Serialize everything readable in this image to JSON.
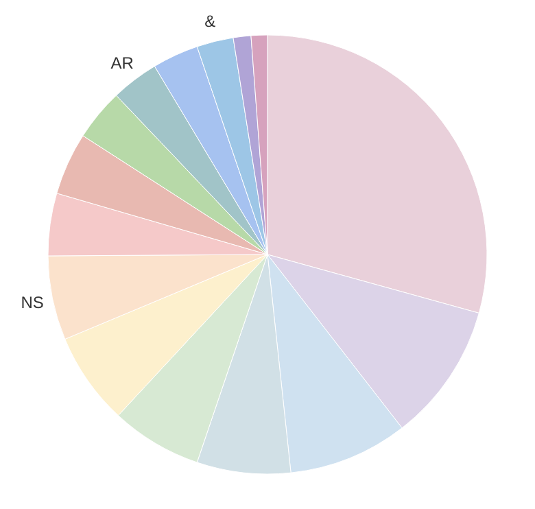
{
  "chart_data": {
    "type": "pie",
    "categories": [
      null,
      null,
      null,
      null,
      null,
      null,
      "NS",
      null,
      null,
      null,
      "AR",
      null,
      "&",
      null,
      null
    ],
    "values": [
      29.3,
      10.2,
      8.8,
      6.9,
      6.7,
      6.8,
      6.2,
      4.6,
      4.6,
      3.8,
      3.5,
      3.4,
      2.7,
      1.3,
      1.2
    ],
    "colors": [
      "#e9d0da",
      "#dcd3e8",
      "#cfe1f0",
      "#d1e0e6",
      "#d7e9d3",
      "#fdf0cd",
      "#fbe2cc",
      "#f5c9c9",
      "#e8b9b1",
      "#b7d9a8",
      "#a1c4c8",
      "#a6c2f0",
      "#9dc6e6",
      "#b0a4d6",
      "#d6a2bd"
    ]
  }
}
